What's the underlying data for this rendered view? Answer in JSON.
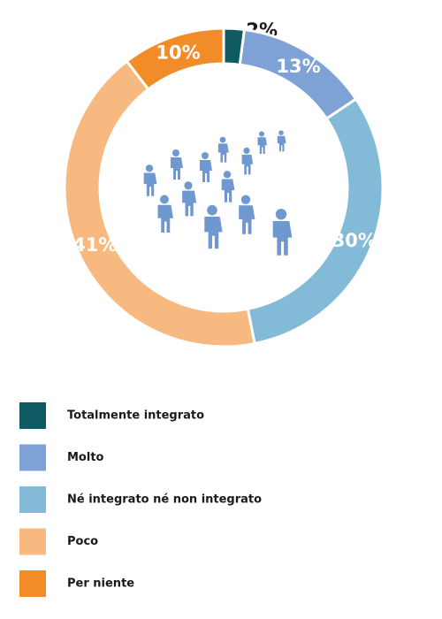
{
  "chart_data": {
    "type": "donut",
    "categories": [
      "Totalmente integrato",
      "Molto",
      "Né integrato né non integrato",
      "Poco",
      "Per niente"
    ],
    "values": [
      2,
      13,
      30,
      41,
      10
    ],
    "value_labels": [
      "2%",
      "13%",
      "30%",
      "41%",
      "10%"
    ],
    "colors": [
      "#0f5b63",
      "#7ea1d6",
      "#83bad8",
      "#f7b97f",
      "#f28c28"
    ]
  }
}
